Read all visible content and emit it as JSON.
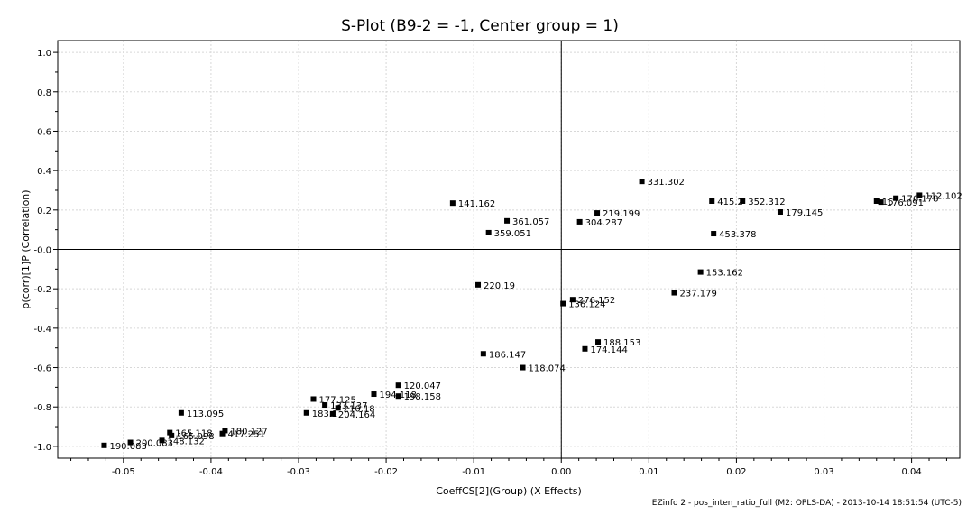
{
  "chart_data": {
    "type": "scatter",
    "title": "S-Plot (B9-2 = -1, Center group = 1)",
    "xlabel": "CoeffCS[2](Group) (X Effects)",
    "ylabel": "p(corr)[1]P (Correlation)",
    "xlim": [
      -0.0575,
      0.0455
    ],
    "ylim": [
      -1.06,
      1.06
    ],
    "x_ticks": [
      "-0.05",
      "-0.04",
      "-0.03",
      "-0.02",
      "-0.01",
      "0.00",
      "0.01",
      "0.02",
      "0.03",
      "0.04"
    ],
    "y_ticks": [
      "1.0",
      "0.8",
      "0.6",
      "0.4",
      "0.2",
      "-0.0",
      "-0.2",
      "-0.4",
      "-0.6",
      "-0.8",
      "-1.0"
    ],
    "x_tick_values": [
      -0.05,
      -0.04,
      -0.03,
      -0.02,
      -0.01,
      0.0,
      0.01,
      0.02,
      0.03,
      0.04
    ],
    "y_tick_values": [
      1.0,
      0.8,
      0.6,
      0.4,
      0.2,
      0.0,
      -0.2,
      -0.4,
      -0.6,
      -0.8,
      -1.0
    ],
    "grid": true,
    "marker_color": "#000000",
    "grid_color": "#d8d8d8",
    "points": [
      {
        "x": 0.0409,
        "y": 0.275,
        "label": "112.102"
      },
      {
        "x": 0.0382,
        "y": 0.26,
        "label": "176.178"
      },
      {
        "x": 0.0365,
        "y": 0.24,
        "label": "176.091"
      },
      {
        "x": 0.036,
        "y": 0.245,
        "label": "16"
      },
      {
        "x": 0.0172,
        "y": 0.245,
        "label": "415.2"
      },
      {
        "x": 0.0207,
        "y": 0.245,
        "label": "352.312"
      },
      {
        "x": 0.025,
        "y": 0.19,
        "label": "179.145"
      },
      {
        "x": 0.0174,
        "y": 0.08,
        "label": "453.378"
      },
      {
        "x": 0.0092,
        "y": 0.345,
        "label": "331.302"
      },
      {
        "x": 0.0041,
        "y": 0.185,
        "label": "219.199"
      },
      {
        "x": 0.0021,
        "y": 0.14,
        "label": "304.287"
      },
      {
        "x": -0.0124,
        "y": 0.235,
        "label": "141.162"
      },
      {
        "x": -0.0062,
        "y": 0.145,
        "label": "361.057"
      },
      {
        "x": -0.0083,
        "y": 0.085,
        "label": "359.051"
      },
      {
        "x": 0.0159,
        "y": -0.115,
        "label": "153.162"
      },
      {
        "x": 0.0129,
        "y": -0.22,
        "label": "237.179"
      },
      {
        "x": -0.0095,
        "y": -0.18,
        "label": "220.19"
      },
      {
        "x": 0.0013,
        "y": -0.255,
        "label": "276.152"
      },
      {
        "x": 0.0002,
        "y": -0.275,
        "label": "136.124"
      },
      {
        "x": 0.0042,
        "y": -0.47,
        "label": "188.153"
      },
      {
        "x": 0.0027,
        "y": -0.505,
        "label": "174.144"
      },
      {
        "x": -0.0089,
        "y": -0.53,
        "label": "186.147"
      },
      {
        "x": -0.0044,
        "y": -0.6,
        "label": "118.074"
      },
      {
        "x": -0.0186,
        "y": -0.69,
        "label": "120.047"
      },
      {
        "x": -0.0214,
        "y": -0.735,
        "label": "194.118"
      },
      {
        "x": -0.0186,
        "y": -0.745,
        "label": "198.158"
      },
      {
        "x": -0.0283,
        "y": -0.76,
        "label": "177.125"
      },
      {
        "x": -0.027,
        "y": -0.79,
        "label": "133.137"
      },
      {
        "x": -0.0255,
        "y": -0.805,
        "label": "210.18"
      },
      {
        "x": -0.0291,
        "y": -0.83,
        "label": "183.1"
      },
      {
        "x": -0.0261,
        "y": -0.835,
        "label": "204.164"
      },
      {
        "x": -0.0434,
        "y": -0.83,
        "label": "113.095"
      },
      {
        "x": -0.0384,
        "y": -0.92,
        "label": "180.127"
      },
      {
        "x": -0.0387,
        "y": -0.935,
        "label": "417.251"
      },
      {
        "x": -0.0447,
        "y": -0.93,
        "label": "165.118"
      },
      {
        "x": -0.0445,
        "y": -0.945,
        "label": "165.098"
      },
      {
        "x": -0.0456,
        "y": -0.97,
        "label": "148.132"
      },
      {
        "x": -0.0492,
        "y": -0.98,
        "label": "200.083"
      },
      {
        "x": -0.0522,
        "y": -0.995,
        "label": "190.083"
      }
    ]
  },
  "footer": "EZinfo 2 - pos_inten_ratio_full (M2: OPLS-DA) - 2013-10-14 18:51:54 (UTC-5)"
}
